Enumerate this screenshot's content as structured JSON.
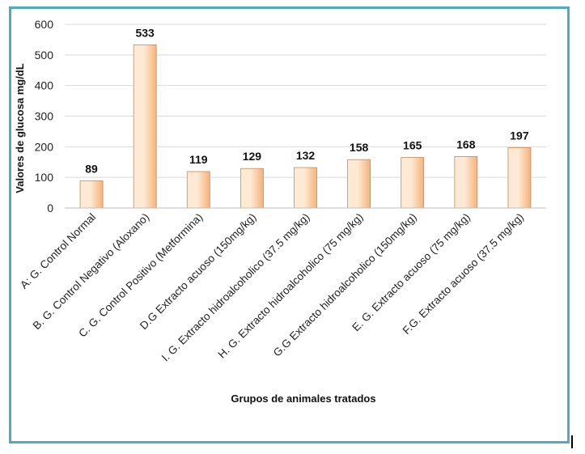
{
  "chart_data": {
    "type": "bar",
    "xlabel": "Grupos de animales tratados",
    "ylabel": "Valores de glucosa mg/dL",
    "ylim": [
      0,
      600
    ],
    "yticks": [
      0,
      100,
      200,
      300,
      400,
      500,
      600
    ],
    "grid": true,
    "categories": [
      "A: G. Control Normal",
      "B. G. Control Negativo (Aloxano)",
      "C. G. Control Positivo (Metformina)",
      "D.G Extracto acuoso (150mg/kg)",
      "I. G. Extracto hidroalcoholico (37.5 mg/kg)",
      "H. G. Extracto hidroalcoholico (75 mg/kg)",
      "G.G Extracto hidroalcoholico (150mg/kg)",
      "E. G. Extracto acuoso (75 mg/kg)",
      "F.G. Extracto acuoso (37.5 mg/kg)"
    ],
    "values": [
      89,
      533,
      119,
      129,
      132,
      158,
      165,
      168,
      197
    ],
    "colors": {
      "bar_light": "#fde9d4",
      "bar_dark": "#f7b27a",
      "bar_edge": "#c98a55",
      "grid": "#d9d9d9",
      "frame": "#4bacc6"
    }
  }
}
